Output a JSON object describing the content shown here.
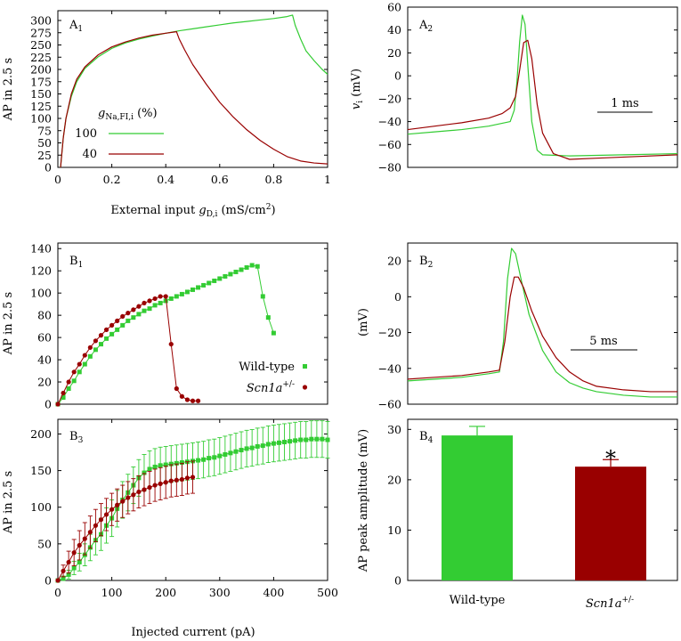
{
  "colors": {
    "green": "#33cc33",
    "darkred": "#990000"
  },
  "chart_data": [
    {
      "id": "A1",
      "type": "line",
      "panel_label": "A1",
      "xlabel": "External input gD,i (mS/cm2)",
      "ylabel": "AP in 2.5 s",
      "xlim": [
        0,
        1
      ],
      "ylim": [
        0,
        320
      ],
      "xticks": [
        0,
        0.2,
        0.4,
        0.6,
        0.8,
        1
      ],
      "xtick_labels": [
        "0",
        "0.2",
        "0.4",
        "0.6",
        "0.8",
        "1"
      ],
      "yticks": [
        0,
        25,
        50,
        75,
        100,
        125,
        150,
        175,
        200,
        225,
        250,
        275,
        300
      ],
      "legend_title": "gNa,FI,i (%)",
      "series": [
        {
          "name": "100",
          "color": "#33cc33",
          "x": [
            0.01,
            0.015,
            0.02,
            0.03,
            0.05,
            0.07,
            0.1,
            0.15,
            0.2,
            0.25,
            0.3,
            0.35,
            0.4,
            0.45,
            0.5,
            0.55,
            0.6,
            0.65,
            0.7,
            0.75,
            0.8,
            0.85,
            0.87,
            0.88,
            0.9,
            0.92,
            0.95,
            0.98,
            1.0
          ],
          "y": [
            0,
            30,
            60,
            100,
            145,
            175,
            202,
            226,
            243,
            254,
            262,
            268,
            274,
            279,
            283,
            287,
            291,
            295,
            298,
            301,
            304,
            308,
            311,
            290,
            262,
            238,
            218,
            200,
            190
          ]
        },
        {
          "name": "40",
          "color": "#990000",
          "x": [
            0.01,
            0.015,
            0.02,
            0.03,
            0.05,
            0.07,
            0.1,
            0.15,
            0.2,
            0.25,
            0.3,
            0.35,
            0.4,
            0.44,
            0.45,
            0.47,
            0.5,
            0.55,
            0.6,
            0.65,
            0.7,
            0.75,
            0.8,
            0.85,
            0.9,
            0.95,
            1.0
          ],
          "y": [
            0,
            30,
            60,
            100,
            150,
            180,
            205,
            230,
            246,
            256,
            264,
            270,
            274,
            277,
            262,
            240,
            210,
            170,
            133,
            103,
            77,
            55,
            37,
            22,
            13,
            9,
            7
          ]
        }
      ]
    },
    {
      "id": "A2",
      "type": "line",
      "panel_label": "A2",
      "ylabel": "vi (mV)",
      "xlim": [
        0,
        10
      ],
      "ylim": [
        -80,
        60
      ],
      "yticks": [
        -80,
        -60,
        -40,
        -20,
        0,
        20,
        40,
        60
      ],
      "scalebar": "1 ms",
      "series": [
        {
          "name": "100",
          "color": "#33cc33",
          "x": [
            0,
            1,
            2,
            3,
            3.8,
            3.95,
            4.05,
            4.15,
            4.25,
            4.35,
            4.45,
            4.6,
            4.8,
            5,
            6,
            8,
            10
          ],
          "y": [
            -51,
            -49,
            -47,
            -44,
            -40,
            -30,
            -5,
            30,
            53,
            45,
            10,
            -40,
            -65,
            -69,
            -70,
            -69,
            -68
          ]
        },
        {
          "name": "40",
          "color": "#990000",
          "x": [
            0,
            1,
            2,
            3,
            3.5,
            3.8,
            4.0,
            4.15,
            4.3,
            4.45,
            4.6,
            4.8,
            5.0,
            5.4,
            6,
            7,
            8,
            10
          ],
          "y": [
            -47,
            -44,
            -41,
            -37,
            -33,
            -28,
            -18,
            5,
            29,
            31,
            15,
            -25,
            -50,
            -68,
            -73,
            -72,
            -71,
            -69
          ]
        }
      ]
    },
    {
      "id": "B1",
      "type": "line+markers",
      "panel_label": "B1",
      "ylabel": "AP in 2.5 s",
      "xlim": [
        0,
        500
      ],
      "ylim": [
        0,
        145
      ],
      "yticks": [
        0,
        20,
        40,
        60,
        80,
        100,
        120,
        140
      ],
      "series": [
        {
          "name": "Wild-type",
          "color": "#33cc33",
          "marker": "square",
          "x": [
            0,
            10,
            20,
            30,
            40,
            50,
            60,
            70,
            80,
            90,
            100,
            110,
            120,
            130,
            140,
            150,
            160,
            170,
            180,
            190,
            200,
            210,
            220,
            230,
            240,
            250,
            260,
            270,
            280,
            290,
            300,
            310,
            320,
            330,
            340,
            350,
            360,
            370,
            380,
            390,
            400
          ],
          "y": [
            0,
            6,
            14,
            21,
            29,
            36,
            43,
            49,
            54,
            59,
            63,
            67,
            71,
            75,
            78,
            81,
            84,
            86,
            89,
            91,
            93,
            95,
            97,
            99,
            101,
            103,
            105,
            107,
            109,
            111,
            113,
            115,
            117,
            119,
            121,
            123,
            125,
            124,
            97,
            78,
            64
          ]
        },
        {
          "name": "Scn1a+/-",
          "color": "#990000",
          "marker": "circle",
          "x": [
            0,
            10,
            20,
            30,
            40,
            50,
            60,
            70,
            80,
            90,
            100,
            110,
            120,
            130,
            140,
            150,
            160,
            170,
            180,
            190,
            200,
            210,
            220,
            230,
            240,
            250,
            260
          ],
          "y": [
            0,
            10,
            20,
            29,
            36,
            44,
            51,
            57,
            62,
            67,
            71,
            75,
            79,
            82,
            85,
            88,
            91,
            93,
            95,
            97,
            97,
            54,
            14,
            7,
            4,
            3,
            3
          ]
        }
      ]
    },
    {
      "id": "B2",
      "type": "line",
      "panel_label": "B2",
      "ylabel": "(mV)",
      "xlim": [
        0,
        20
      ],
      "ylim": [
        -60,
        30
      ],
      "yticks": [
        -60,
        -40,
        -20,
        0,
        20
      ],
      "scalebar": "5 ms",
      "series": [
        {
          "name": "Wild-type",
          "color": "#33cc33",
          "x": [
            0,
            2,
            4,
            6,
            6.8,
            7.1,
            7.4,
            7.7,
            8.0,
            8.4,
            9,
            10,
            11,
            12,
            13,
            14,
            16,
            18,
            20
          ],
          "y": [
            -47,
            -46,
            -45,
            -43,
            -42,
            -25,
            10,
            27,
            24,
            10,
            -10,
            -30,
            -42,
            -48,
            -51,
            -53,
            -55,
            -56,
            -56
          ]
        },
        {
          "name": "Scn1a+/-",
          "color": "#990000",
          "x": [
            0,
            2,
            4,
            6,
            6.8,
            7.2,
            7.6,
            7.9,
            8.2,
            8.6,
            9.2,
            10,
            11,
            12,
            13,
            14,
            16,
            18,
            20
          ],
          "y": [
            -46,
            -45,
            -44,
            -42,
            -41,
            -25,
            0,
            11,
            11,
            5,
            -8,
            -22,
            -34,
            -42,
            -47,
            -50,
            -52,
            -53,
            -53
          ]
        }
      ]
    },
    {
      "id": "B3",
      "type": "line+errorbars",
      "panel_label": "B3",
      "xlabel": "Injected current (pA)",
      "ylabel": "AP in 2.5 s",
      "xlim": [
        0,
        500
      ],
      "ylim": [
        0,
        220
      ],
      "xticks": [
        0,
        100,
        200,
        300,
        400,
        500
      ],
      "yticks": [
        0,
        50,
        100,
        150,
        200
      ],
      "series": [
        {
          "name": "Wild-type",
          "color": "#33cc33",
          "marker": "square",
          "x": [
            0,
            10,
            20,
            30,
            40,
            50,
            60,
            70,
            80,
            90,
            100,
            110,
            120,
            130,
            140,
            150,
            160,
            170,
            180,
            190,
            200,
            210,
            220,
            230,
            240,
            250,
            260,
            270,
            280,
            290,
            300,
            310,
            320,
            330,
            340,
            350,
            360,
            370,
            380,
            390,
            400,
            410,
            420,
            430,
            440,
            450,
            460,
            470,
            480,
            490,
            500
          ],
          "y": [
            0,
            3,
            8,
            17,
            25,
            35,
            45,
            55,
            63,
            75,
            85,
            98,
            110,
            120,
            130,
            140,
            147,
            152,
            155,
            157,
            158,
            159,
            160,
            161,
            162,
            163,
            164,
            165,
            167,
            168,
            170,
            172,
            174,
            176,
            178,
            180,
            181,
            183,
            184,
            186,
            187,
            188,
            189,
            190,
            191,
            192,
            192,
            193,
            193,
            193,
            192
          ],
          "err": [
            0,
            3,
            6,
            9,
            12,
            15,
            18,
            20,
            22,
            24,
            25,
            25,
            25,
            25,
            25,
            25,
            25,
            25,
            25,
            25,
            25,
            25,
            25,
            25,
            25,
            25,
            25,
            25,
            25,
            25,
            25,
            25,
            25,
            25,
            25,
            25,
            25,
            25,
            25,
            25,
            25,
            25,
            25,
            25,
            25,
            25,
            25,
            25,
            25,
            25,
            25
          ]
        },
        {
          "name": "Scn1a+/-",
          "color": "#990000",
          "marker": "circle",
          "x": [
            0,
            10,
            20,
            30,
            40,
            50,
            60,
            70,
            80,
            90,
            100,
            110,
            120,
            130,
            140,
            150,
            160,
            170,
            180,
            190,
            200,
            210,
            220,
            230,
            240,
            250
          ],
          "y": [
            0,
            13,
            25,
            38,
            48,
            57,
            66,
            75,
            83,
            90,
            97,
            103,
            108,
            113,
            117,
            121,
            124,
            127,
            130,
            132,
            134,
            136,
            137,
            138,
            140,
            141
          ],
          "err": [
            0,
            8,
            15,
            18,
            20,
            22,
            22,
            22,
            22,
            22,
            22,
            22,
            22,
            22,
            22,
            22,
            22,
            22,
            22,
            22,
            22,
            22,
            22,
            22,
            22,
            22
          ]
        }
      ]
    },
    {
      "id": "B4",
      "type": "bar",
      "panel_label": "B4",
      "ylabel": "AP peak amplitude (mV)",
      "ylim": [
        0,
        32
      ],
      "yticks": [
        0,
        10,
        20,
        30
      ],
      "categories": [
        "Wild-type",
        "Scn1a+/-"
      ],
      "values": [
        28.8,
        22.6
      ],
      "errors": [
        1.8,
        1.4
      ],
      "colors": [
        "#33cc33",
        "#990000"
      ],
      "annotation": "*"
    }
  ],
  "labels": {
    "a1_panel_main": "A",
    "a1_panel_sub": "1",
    "a2_panel_main": "A",
    "a2_panel_sub": "2",
    "b1_panel_main": "B",
    "b1_panel_sub": "1",
    "b2_panel_main": "B",
    "b2_panel_sub": "2",
    "b3_panel_main": "B",
    "b3_panel_sub": "3",
    "b4_panel_main": "B",
    "b4_panel_sub": "4",
    "a1_ylabel": "AP in 2.5 s",
    "a1_xlabel_main": "External input ",
    "a1_xlabel_g": "g",
    "a1_xlabel_gsub": "D,i",
    "a1_xlabel_units": " (mS/cm",
    "a1_xlabel_sup": "2",
    "a1_xlabel_close": ")",
    "a1_legend_g": "g",
    "a1_legend_gsub": "Na,FI,i",
    "a1_legend_pct": " (%)",
    "a1_legend_100": "100",
    "a1_legend_40": "40",
    "a2_ylabel_v": "v",
    "a2_ylabel_sub": "i",
    "a2_ylabel_units": " (mV)",
    "a2_scalebar": "1 ms",
    "b1_ylabel": "AP in 2.5 s",
    "b1_legend_wt": "Wild-type",
    "b1_legend_scn": "Scn1a",
    "b1_legend_scn_sup": "+/-",
    "b2_ylabel": "(mV)",
    "b2_scalebar": "5 ms",
    "b3_ylabel": "AP in 2.5 s",
    "b3_xlabel": "Injected current (pA)",
    "b4_ylabel": "AP peak amplitude (mV)",
    "b4_cat_wt": "Wild-type",
    "b4_cat_scn": "Scn1a",
    "b4_cat_scn_sup": "+/-",
    "b4_star": "*"
  }
}
